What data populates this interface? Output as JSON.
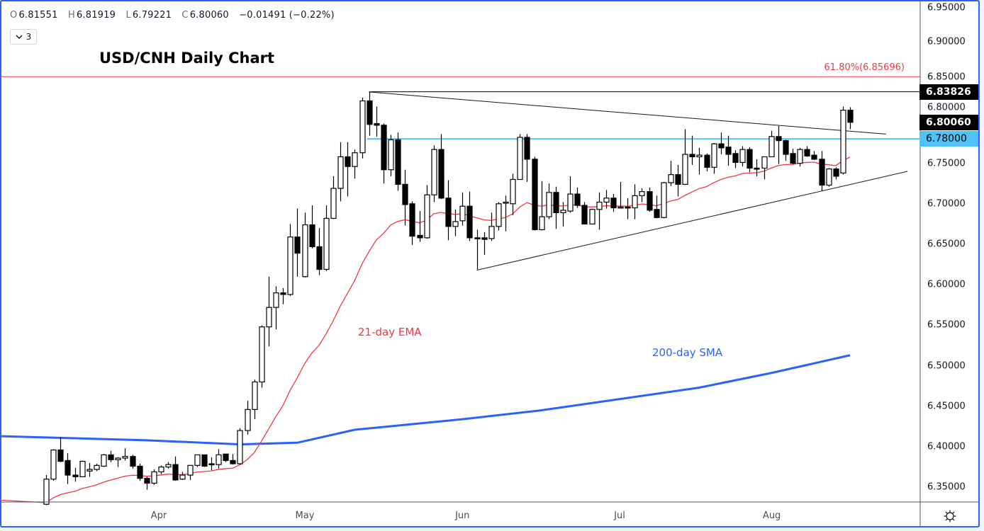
{
  "header": {
    "ohlc": [
      {
        "key": "O",
        "value": "6.81551"
      },
      {
        "key": "H",
        "value": "6.81919"
      },
      {
        "key": "L",
        "value": "6.79221"
      },
      {
        "key": "C",
        "value": "6.80060"
      }
    ],
    "change": "−0.01491 (−0.22%)",
    "indicators_count": "3",
    "collapse_icon": "chevron-down-icon"
  },
  "title": "USD/CNH Daily Chart",
  "settings_icon": "gear-icon",
  "chart_data": {
    "type": "candlestick",
    "title": "USD/CNH Daily Chart",
    "ylim": [
      6.3283,
      6.9498
    ],
    "y_ticks": [
      "6.95000",
      "6.90000",
      "6.85000",
      "6.80000",
      "6.75000",
      "6.70000",
      "6.65000",
      "6.60000",
      "6.55000",
      "6.50000",
      "6.45000",
      "6.40000",
      "6.35000"
    ],
    "y_tick_values": [
      6.95,
      6.9,
      6.85,
      6.8,
      6.75,
      6.7,
      6.65,
      6.6,
      6.55,
      6.5,
      6.45,
      6.4,
      6.35
    ],
    "x_ticks": [
      {
        "label": "Apr",
        "bar": 15.7
      },
      {
        "label": "May",
        "bar": 36.05
      },
      {
        "label": "Jun",
        "bar": 58
      },
      {
        "label": "Jul",
        "bar": 79.9
      },
      {
        "label": "Aug",
        "bar": 101.1
      }
    ],
    "xlim_bars": [
      -6.2,
      121.8
    ],
    "ohlc": [
      [
        6.329,
        6.365,
        6.328,
        6.36
      ],
      [
        6.36,
        6.397,
        6.358,
        6.396
      ],
      [
        6.396,
        6.412,
        6.381,
        6.382
      ],
      [
        6.383,
        6.392,
        6.354,
        6.365
      ],
      [
        6.365,
        6.374,
        6.357,
        6.363
      ],
      [
        6.363,
        6.383,
        6.363,
        6.382
      ],
      [
        6.37,
        6.38,
        6.363,
        6.372
      ],
      [
        6.372,
        6.379,
        6.37,
        6.377
      ],
      [
        6.376,
        6.391,
        6.375,
        6.39
      ],
      [
        6.39,
        6.395,
        6.381,
        6.384
      ],
      [
        6.384,
        6.387,
        6.375,
        6.386
      ],
      [
        6.386,
        6.398,
        6.383,
        6.388
      ],
      [
        6.388,
        6.39,
        6.373,
        6.376
      ],
      [
        6.376,
        6.379,
        6.358,
        6.361
      ],
      [
        6.361,
        6.363,
        6.347,
        6.355
      ],
      [
        6.355,
        6.372,
        6.353,
        6.369
      ],
      [
        6.369,
        6.377,
        6.366,
        6.375
      ],
      [
        6.375,
        6.381,
        6.373,
        6.378
      ],
      [
        6.378,
        6.388,
        6.358,
        6.359
      ],
      [
        6.36,
        6.369,
        6.359,
        6.365
      ],
      [
        6.365,
        6.377,
        6.359,
        6.377
      ],
      [
        6.377,
        6.39,
        6.375,
        6.39
      ],
      [
        6.39,
        6.39,
        6.375,
        6.376
      ],
      [
        6.379,
        6.387,
        6.371,
        6.378
      ],
      [
        6.378,
        6.397,
        6.373,
        6.39
      ],
      [
        6.391,
        6.391,
        6.381,
        6.383
      ],
      [
        6.383,
        6.391,
        6.378,
        6.379
      ],
      [
        6.379,
        6.423,
        6.378,
        6.42
      ],
      [
        6.42,
        6.457,
        6.415,
        6.446
      ],
      [
        6.446,
        6.483,
        6.434,
        6.48
      ],
      [
        6.48,
        6.55,
        6.473,
        6.548
      ],
      [
        6.548,
        6.61,
        6.524,
        6.572
      ],
      [
        6.572,
        6.598,
        6.545,
        6.59
      ],
      [
        6.59,
        6.596,
        6.576,
        6.588
      ],
      [
        6.588,
        6.675,
        6.586,
        6.659
      ],
      [
        6.659,
        6.694,
        6.61,
        6.639
      ],
      [
        6.61,
        6.689,
        6.609,
        6.674
      ],
      [
        6.674,
        6.698,
        6.645,
        6.647
      ],
      [
        6.647,
        6.67,
        6.612,
        6.619
      ],
      [
        6.619,
        6.698,
        6.617,
        6.682
      ],
      [
        6.682,
        6.734,
        6.681,
        6.719
      ],
      [
        6.719,
        6.776,
        6.703,
        6.758
      ],
      [
        6.758,
        6.776,
        6.709,
        6.746
      ],
      [
        6.746,
        6.767,
        6.731,
        6.763
      ],
      [
        6.763,
        6.831,
        6.756,
        6.827
      ],
      [
        6.827,
        6.838,
        6.784,
        6.798
      ],
      [
        6.799,
        6.82,
        6.783,
        6.797
      ],
      [
        6.797,
        6.799,
        6.725,
        6.742
      ],
      [
        6.742,
        6.785,
        6.734,
        6.779
      ],
      [
        6.779,
        6.788,
        6.716,
        6.724
      ],
      [
        6.724,
        6.742,
        6.673,
        6.699
      ],
      [
        6.7,
        6.703,
        6.649,
        6.66
      ],
      [
        6.661,
        6.691,
        6.653,
        6.658
      ],
      [
        6.658,
        6.723,
        6.657,
        6.711
      ],
      [
        6.711,
        6.772,
        6.702,
        6.767
      ],
      [
        6.767,
        6.786,
        6.706,
        6.707
      ],
      [
        6.707,
        6.729,
        6.655,
        6.672
      ],
      [
        6.672,
        6.693,
        6.66,
        6.678
      ],
      [
        6.679,
        6.714,
        6.673,
        6.697
      ],
      [
        6.697,
        6.715,
        6.654,
        6.658
      ],
      [
        6.658,
        6.668,
        6.619,
        6.657
      ],
      [
        6.658,
        6.665,
        6.637,
        6.656
      ],
      [
        6.657,
        6.689,
        6.654,
        6.672
      ],
      [
        6.672,
        6.702,
        6.667,
        6.7
      ],
      [
        6.701,
        6.71,
        6.666,
        6.702
      ],
      [
        6.7,
        6.737,
        6.686,
        6.73
      ],
      [
        6.73,
        6.786,
        6.73,
        6.782
      ],
      [
        6.782,
        6.786,
        6.727,
        6.755
      ],
      [
        6.755,
        6.758,
        6.667,
        6.668
      ],
      [
        6.668,
        6.728,
        6.667,
        6.684
      ],
      [
        6.684,
        6.725,
        6.681,
        6.714
      ],
      [
        6.714,
        6.721,
        6.669,
        6.689
      ],
      [
        6.689,
        6.702,
        6.672,
        6.692
      ],
      [
        6.691,
        6.734,
        6.689,
        6.712
      ],
      [
        6.712,
        6.72,
        6.695,
        6.698
      ],
      [
        6.698,
        6.702,
        6.675,
        6.675
      ],
      [
        6.675,
        6.694,
        6.675,
        6.693
      ],
      [
        6.693,
        6.714,
        6.668,
        6.702
      ],
      [
        6.702,
        6.717,
        6.694,
        6.707
      ],
      [
        6.707,
        6.712,
        6.69,
        6.695
      ],
      [
        6.695,
        6.727,
        6.694,
        6.696
      ],
      [
        6.696,
        6.707,
        6.681,
        6.695
      ],
      [
        6.695,
        6.724,
        6.681,
        6.71
      ],
      [
        6.71,
        6.719,
        6.702,
        6.715
      ],
      [
        6.715,
        6.72,
        6.69,
        6.692
      ],
      [
        6.693,
        6.71,
        6.682,
        6.683
      ],
      [
        6.683,
        6.727,
        6.682,
        6.726
      ],
      [
        6.726,
        6.753,
        6.722,
        6.736
      ],
      [
        6.736,
        6.748,
        6.709,
        6.724
      ],
      [
        6.724,
        6.792,
        6.723,
        6.761
      ],
      [
        6.761,
        6.784,
        6.748,
        6.758
      ],
      [
        6.758,
        6.769,
        6.736,
        6.76
      ],
      [
        6.76,
        6.762,
        6.74,
        6.745
      ],
      [
        6.745,
        6.775,
        6.737,
        6.774
      ],
      [
        6.774,
        6.788,
        6.761,
        6.769
      ],
      [
        6.77,
        6.784,
        6.747,
        6.761
      ],
      [
        6.762,
        6.766,
        6.744,
        6.751
      ],
      [
        6.751,
        6.771,
        6.746,
        6.767
      ],
      [
        6.767,
        6.77,
        6.739,
        6.744
      ],
      [
        6.744,
        6.755,
        6.734,
        6.743
      ],
      [
        6.744,
        6.758,
        6.73,
        6.758
      ],
      [
        6.758,
        6.79,
        6.758,
        6.783
      ],
      [
        6.783,
        6.796,
        6.749,
        6.778
      ],
      [
        6.778,
        6.779,
        6.753,
        6.761
      ],
      [
        6.762,
        6.768,
        6.749,
        6.75
      ],
      [
        6.75,
        6.769,
        6.746,
        6.767
      ],
      [
        6.767,
        6.771,
        6.758,
        6.759
      ],
      [
        6.76,
        6.765,
        6.754,
        6.755
      ],
      [
        6.755,
        6.765,
        6.716,
        6.723
      ],
      [
        6.723,
        6.744,
        6.721,
        6.743
      ],
      [
        6.743,
        6.745,
        6.73,
        6.734
      ],
      [
        6.738,
        6.82,
        6.736,
        6.8155
      ],
      [
        6.81551,
        6.81919,
        6.79221,
        6.8006
      ]
    ],
    "ema": {
      "label": "21-day EMA",
      "period": 21,
      "seed": 6.331,
      "color": "#f23645"
    },
    "sma": {
      "label": "200-day SMA",
      "color": "#2962ff",
      "points": [
        [
          -6.2,
          6.413
        ],
        [
          14,
          6.408
        ],
        [
          27,
          6.403
        ],
        [
          35,
          6.405
        ],
        [
          43,
          6.421
        ],
        [
          58,
          6.434
        ],
        [
          69,
          6.445
        ],
        [
          80,
          6.459
        ],
        [
          91,
          6.473
        ],
        [
          101,
          6.491
        ],
        [
          112,
          6.513
        ]
      ]
    },
    "fib_level": {
      "label": "61.80%(6.85696)",
      "value": 6.85696,
      "color": "#f23645"
    },
    "horizontal_levels": [
      {
        "value": 6.83826,
        "label": "6.83826",
        "from_bar": 45,
        "color": "#000000"
      },
      {
        "value": 6.78,
        "label": "6.78000",
        "from_bar": 44.7,
        "color": "#4fc3f7"
      }
    ],
    "last_price": {
      "value": 6.8006,
      "label": "6.80060"
    },
    "trendlines": [
      {
        "name": "upper-trendline",
        "from": [
          45,
          6.838
        ],
        "to": [
          117,
          6.786
        ]
      },
      {
        "name": "lower-trendline",
        "from": [
          60,
          6.618
        ],
        "to": [
          120,
          6.74
        ]
      }
    ]
  }
}
